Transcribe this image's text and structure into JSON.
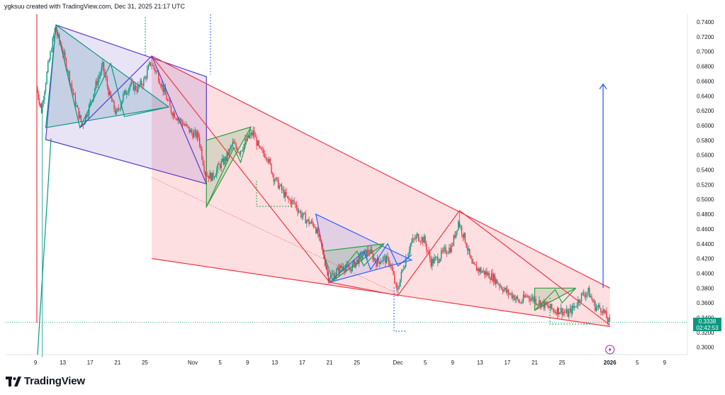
{
  "header": {
    "credit": "ygksuu created with TradingView.com, Dec 31, 2025 21:17 UTC"
  },
  "footer": {
    "brand": "TradingView"
  },
  "price_tag": {
    "price": "0.3338",
    "countdown": "02:42:53",
    "color": "#089981"
  },
  "colors": {
    "up": "#089981",
    "down": "#f23645",
    "wedge_red": "#f23645",
    "wedge_purple": "#5b3cc4",
    "wedge_green": "#2e9e3e",
    "wedge_blue": "#2962ff"
  },
  "chart_data": {
    "type": "candlestick",
    "y_axis": {
      "range": [
        0.28,
        0.745
      ],
      "ticks": [
        "0.7400",
        "0.7200",
        "0.7000",
        "0.6800",
        "0.6600",
        "0.6400",
        "0.6200",
        "0.6000",
        "0.5800",
        "0.5600",
        "0.5400",
        "0.5200",
        "0.5000",
        "0.4800",
        "0.4600",
        "0.4400",
        "0.4200",
        "0.4000",
        "0.3800",
        "0.3600",
        "0.3400",
        "0.3200",
        "0.3000"
      ]
    },
    "x_axis": {
      "ticks": [
        {
          "label": "9",
          "day": -1
        },
        {
          "label": "13",
          "day": 3
        },
        {
          "label": "17",
          "day": 7
        },
        {
          "label": "21",
          "day": 11
        },
        {
          "label": "25",
          "day": 15
        },
        {
          "label": "Nov",
          "day": 22
        },
        {
          "label": "5",
          "day": 26
        },
        {
          "label": "9",
          "day": 30
        },
        {
          "label": "13",
          "day": 34
        },
        {
          "label": "17",
          "day": 38
        },
        {
          "label": "21",
          "day": 42
        },
        {
          "label": "25",
          "day": 46
        },
        {
          "label": "Dec",
          "day": 52
        },
        {
          "label": "5",
          "day": 56
        },
        {
          "label": "9",
          "day": 60
        },
        {
          "label": "13",
          "day": 64
        },
        {
          "label": "17",
          "day": 68
        },
        {
          "label": "21",
          "day": 72
        },
        {
          "label": "25",
          "day": 76
        },
        {
          "label": "2026",
          "day": 83,
          "bold": true
        },
        {
          "label": "5",
          "day": 87
        },
        {
          "label": "9",
          "day": 91
        }
      ]
    },
    "price_path": [
      {
        "day": -0.7,
        "price": 0.65
      },
      {
        "day": 0,
        "price": 0.62
      },
      {
        "day": 1,
        "price": 0.68
      },
      {
        "day": 2,
        "price": 0.73
      },
      {
        "day": 3,
        "price": 0.705
      },
      {
        "day": 4,
        "price": 0.67
      },
      {
        "day": 5,
        "price": 0.63
      },
      {
        "day": 6,
        "price": 0.6
      },
      {
        "day": 7,
        "price": 0.625
      },
      {
        "day": 8,
        "price": 0.655
      },
      {
        "day": 9,
        "price": 0.68
      },
      {
        "day": 10,
        "price": 0.64
      },
      {
        "day": 11,
        "price": 0.615
      },
      {
        "day": 12,
        "price": 0.64
      },
      {
        "day": 13,
        "price": 0.655
      },
      {
        "day": 14,
        "price": 0.65
      },
      {
        "day": 15,
        "price": 0.66
      },
      {
        "day": 16,
        "price": 0.685
      },
      {
        "day": 17,
        "price": 0.67
      },
      {
        "day": 18,
        "price": 0.645
      },
      {
        "day": 19,
        "price": 0.62
      },
      {
        "day": 20,
        "price": 0.61
      },
      {
        "day": 21,
        "price": 0.6
      },
      {
        "day": 22,
        "price": 0.59
      },
      {
        "day": 23,
        "price": 0.585
      },
      {
        "day": 24,
        "price": 0.535
      },
      {
        "day": 25,
        "price": 0.53
      },
      {
        "day": 26,
        "price": 0.545
      },
      {
        "day": 27,
        "price": 0.555
      },
      {
        "day": 28,
        "price": 0.575
      },
      {
        "day": 29,
        "price": 0.565
      },
      {
        "day": 30,
        "price": 0.58
      },
      {
        "day": 31,
        "price": 0.59
      },
      {
        "day": 32,
        "price": 0.565
      },
      {
        "day": 33,
        "price": 0.56
      },
      {
        "day": 34,
        "price": 0.53
      },
      {
        "day": 35,
        "price": 0.515
      },
      {
        "day": 36,
        "price": 0.5
      },
      {
        "day": 37,
        "price": 0.495
      },
      {
        "day": 38,
        "price": 0.48
      },
      {
        "day": 39,
        "price": 0.47
      },
      {
        "day": 40,
        "price": 0.465
      },
      {
        "day": 41,
        "price": 0.435
      },
      {
        "day": 42,
        "price": 0.395
      },
      {
        "day": 43,
        "price": 0.4
      },
      {
        "day": 44,
        "price": 0.41
      },
      {
        "day": 45,
        "price": 0.405
      },
      {
        "day": 46,
        "price": 0.415
      },
      {
        "day": 47,
        "price": 0.425
      },
      {
        "day": 48,
        "price": 0.43
      },
      {
        "day": 49,
        "price": 0.415
      },
      {
        "day": 50,
        "price": 0.42
      },
      {
        "day": 51,
        "price": 0.415
      },
      {
        "day": 52,
        "price": 0.375
      },
      {
        "day": 53,
        "price": 0.41
      },
      {
        "day": 54,
        "price": 0.44
      },
      {
        "day": 55,
        "price": 0.45
      },
      {
        "day": 56,
        "price": 0.445
      },
      {
        "day": 57,
        "price": 0.415
      },
      {
        "day": 58,
        "price": 0.42
      },
      {
        "day": 59,
        "price": 0.43
      },
      {
        "day": 60,
        "price": 0.435
      },
      {
        "day": 61,
        "price": 0.47
      },
      {
        "day": 62,
        "price": 0.445
      },
      {
        "day": 63,
        "price": 0.41
      },
      {
        "day": 64,
        "price": 0.405
      },
      {
        "day": 65,
        "price": 0.4
      },
      {
        "day": 66,
        "price": 0.395
      },
      {
        "day": 67,
        "price": 0.385
      },
      {
        "day": 68,
        "price": 0.375
      },
      {
        "day": 69,
        "price": 0.37
      },
      {
        "day": 70,
        "price": 0.36
      },
      {
        "day": 71,
        "price": 0.37
      },
      {
        "day": 72,
        "price": 0.365
      },
      {
        "day": 73,
        "price": 0.36
      },
      {
        "day": 74,
        "price": 0.355
      },
      {
        "day": 75,
        "price": 0.35
      },
      {
        "day": 76,
        "price": 0.35
      },
      {
        "day": 77,
        "price": 0.345
      },
      {
        "day": 78,
        "price": 0.355
      },
      {
        "day": 79,
        "price": 0.37
      },
      {
        "day": 80,
        "price": 0.375
      },
      {
        "day": 81,
        "price": 0.355
      },
      {
        "day": 82,
        "price": 0.352
      },
      {
        "day": 83,
        "price": 0.334
      }
    ],
    "wick_extremes": [
      {
        "day": 0,
        "low": 0.287
      },
      {
        "day": 2,
        "high": 0.736
      },
      {
        "day": 16,
        "high": 0.694
      },
      {
        "day": 42,
        "low": 0.388
      },
      {
        "day": 52,
        "low": 0.369
      },
      {
        "day": 61,
        "high": 0.485
      }
    ],
    "drawings": {
      "red_wedge": {
        "upper": [
          {
            "day": 16,
            "price": 0.694
          },
          {
            "day": 83,
            "price": 0.38
          }
        ],
        "lower": [
          {
            "day": 16,
            "price": 0.42
          },
          {
            "day": 83,
            "price": 0.328
          }
        ],
        "fill": "rgba(242,54,69,0.16)",
        "zigzag": [
          {
            "day": 16,
            "price": 0.694
          },
          {
            "day": 42,
            "price": 0.388
          },
          {
            "day": 52,
            "price": 0.37
          },
          {
            "day": 61,
            "price": 0.485
          },
          {
            "day": 83,
            "price": 0.33
          }
        ]
      },
      "purple_wedge": {
        "points": [
          {
            "day": 2,
            "price": 0.736
          },
          {
            "day": 24,
            "price": 0.666
          },
          {
            "day": 24,
            "price": 0.521
          },
          {
            "day": 0.5,
            "price": 0.581
          }
        ],
        "fill": "rgba(120,80,200,0.16)"
      },
      "teal_triangle": {
        "points": [
          {
            "day": 2,
            "price": 0.736
          },
          {
            "day": 18.5,
            "price": 0.625
          },
          {
            "day": 0.5,
            "price": 0.597
          }
        ],
        "fill": "rgba(70,140,170,0.22)",
        "zigzag": [
          {
            "day": 2,
            "price": 0.736
          },
          {
            "day": 5.5,
            "price": 0.597
          },
          {
            "day": 10,
            "price": 0.684
          },
          {
            "day": 12,
            "price": 0.612
          },
          {
            "day": 18.5,
            "price": 0.625
          }
        ]
      },
      "blue_triangle": {
        "points": [
          {
            "day": 40,
            "price": 0.48
          },
          {
            "day": 54,
            "price": 0.418
          },
          {
            "day": 42,
            "price": 0.388
          }
        ],
        "fill": "rgba(41,98,255,0.12)"
      },
      "green_flags": [
        {
          "points": [
            {
              "day": 24,
              "price": 0.58
            },
            {
              "day": 30.5,
              "price": 0.598
            },
            {
              "day": 24,
              "price": 0.49
            }
          ],
          "fill": "rgba(46,158,62,0.16)"
        },
        {
          "points": [
            {
              "day": 41,
              "price": 0.43
            },
            {
              "day": 50,
              "price": 0.44
            },
            {
              "day": 42.5,
              "price": 0.39
            }
          ],
          "fill": "rgba(46,158,62,0.16)"
        },
        {
          "points": [
            {
              "day": 72,
              "price": 0.38
            },
            {
              "day": 78,
              "price": 0.38
            },
            {
              "day": 72,
              "price": 0.35
            }
          ],
          "fill": "rgba(46,158,62,0.16)"
        }
      ],
      "target_arrow": {
        "day": 82,
        "from": 0.38,
        "to": 0.656
      },
      "projections": [
        {
          "from": {
            "day": 61,
            "price": 0.485
          },
          "to": {
            "day": 83,
            "price": 0.33
          }
        },
        {
          "from": {
            "day": 16,
            "price": 0.53
          },
          "to": {
            "day": 52,
            "price": 0.372
          }
        }
      ]
    }
  }
}
